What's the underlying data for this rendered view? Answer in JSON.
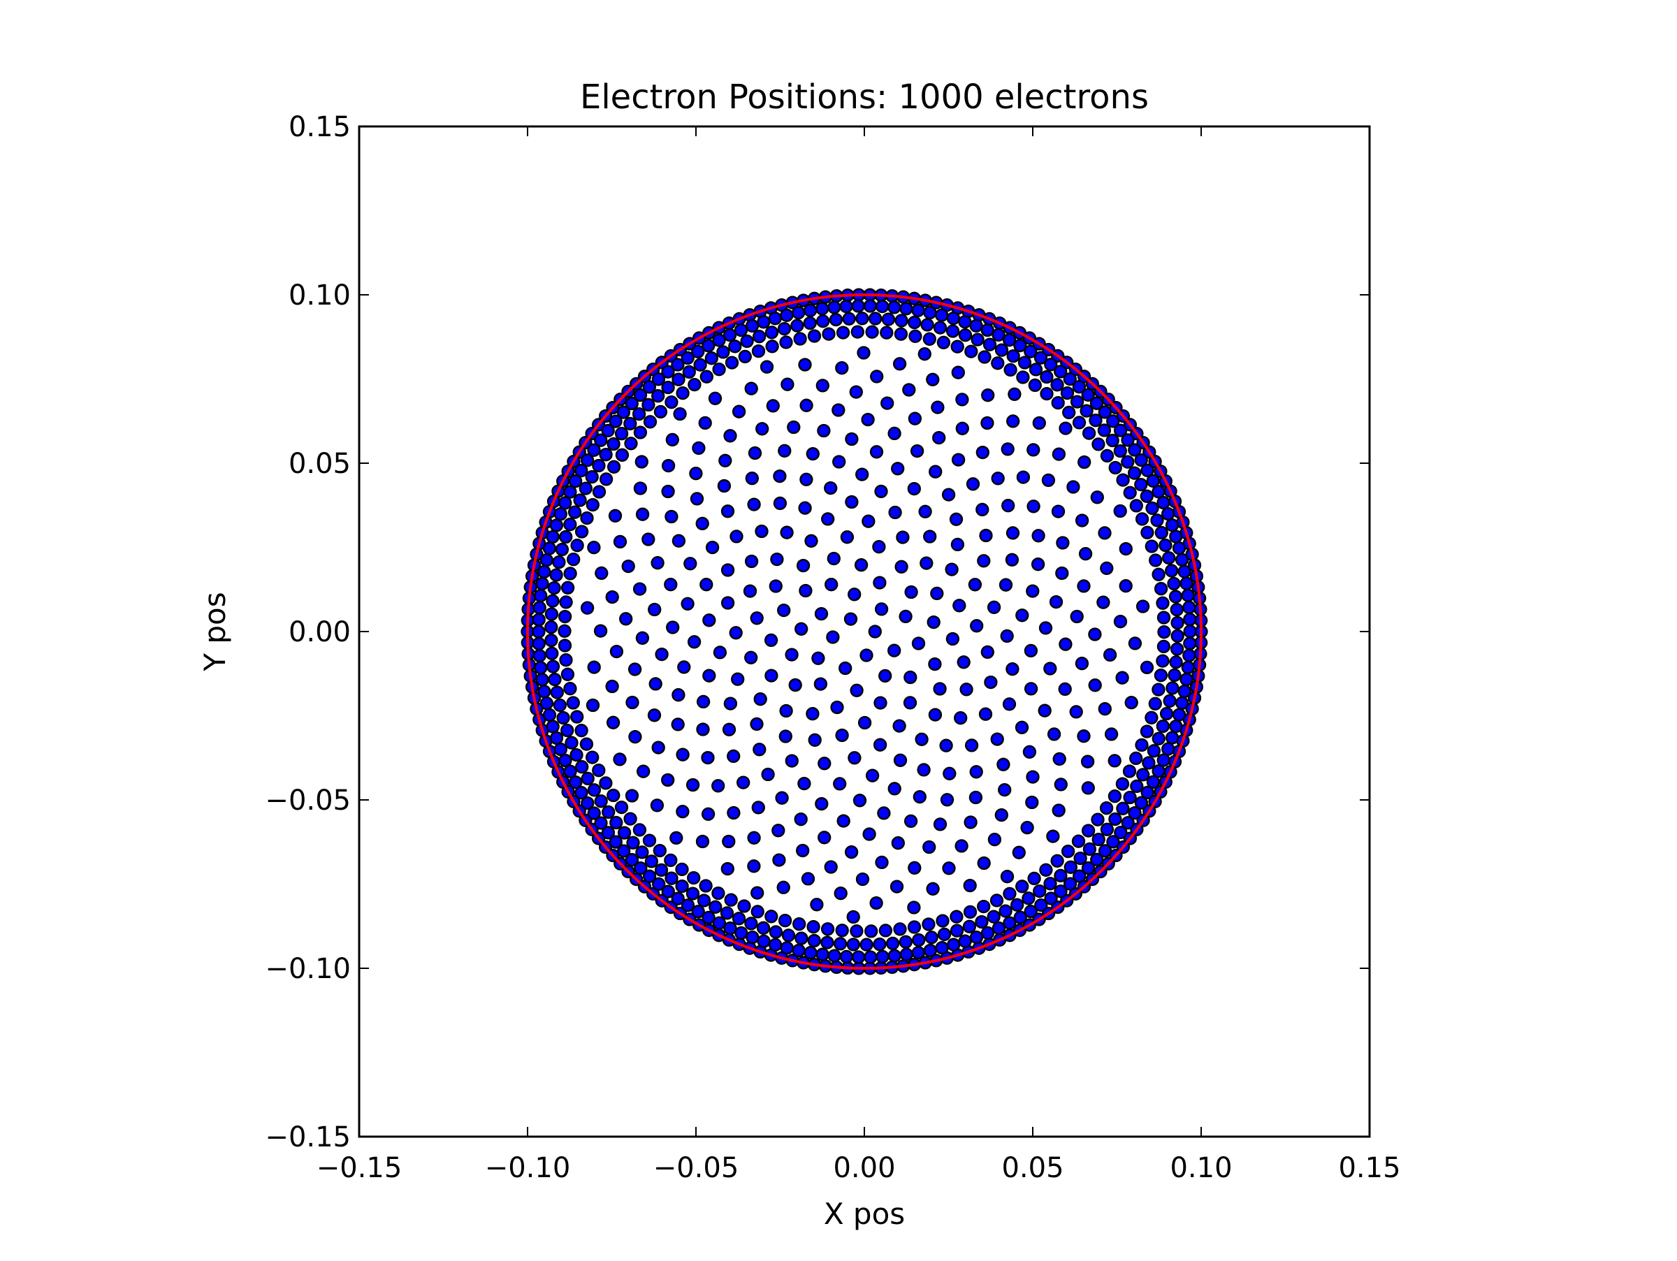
{
  "chart_data": {
    "type": "scatter",
    "title": "Electron Positions: 1000 electrons",
    "xlabel": "X pos",
    "ylabel": "Y pos",
    "xlim": [
      -0.15,
      0.15
    ],
    "ylim": [
      -0.15,
      0.15
    ],
    "x_ticks": [
      "−0.15",
      "−0.10",
      "−0.05",
      "0.00",
      "0.05",
      "0.10",
      "0.15"
    ],
    "y_ticks": [
      "−0.15",
      "−0.10",
      "−0.05",
      "0.00",
      "0.05",
      "0.10",
      "0.15"
    ],
    "grid": false,
    "series": [
      {
        "marker_color": "#0000ff",
        "edge_color": "#000000",
        "count": 1000,
        "distribution": "uniform point charges in disc of radius 0.10, densest near rim"
      }
    ],
    "boundary_circle": {
      "center": [
        0.0,
        0.0
      ],
      "radius": 0.1,
      "color": "#ff0000"
    }
  }
}
